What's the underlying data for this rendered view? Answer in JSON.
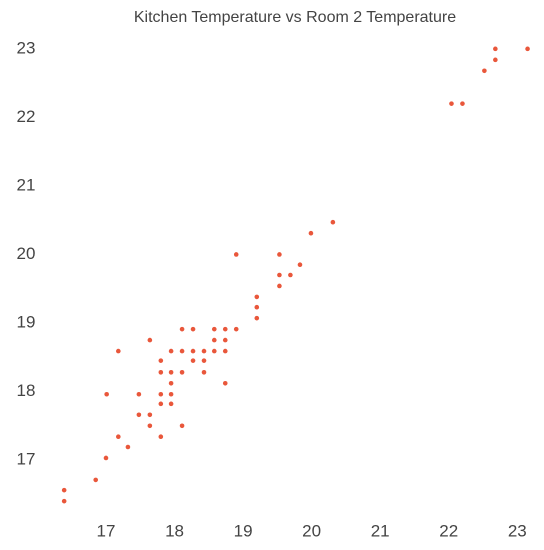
{
  "chart_data": {
    "type": "scatter",
    "title": "Kitchen Temperature vs Room 2 Temperature",
    "color": "#e9573b",
    "xlim": [
      16.3,
      23.2
    ],
    "ylim": [
      16.3,
      23.1
    ],
    "xticks": [
      17,
      18,
      19,
      20,
      21,
      22,
      23
    ],
    "yticks": [
      17,
      18,
      19,
      20,
      21,
      22,
      23
    ],
    "x": [
      16.39,
      16.39,
      16.85,
      17.0,
      17.01,
      17.18,
      17.18,
      17.32,
      17.48,
      17.48,
      17.64,
      17.64,
      17.64,
      17.8,
      17.8,
      17.8,
      17.8,
      17.8,
      17.95,
      17.95,
      17.95,
      17.95,
      17.95,
      18.11,
      18.11,
      18.11,
      18.11,
      18.27,
      18.27,
      18.27,
      18.43,
      18.43,
      18.43,
      18.58,
      18.58,
      18.58,
      18.74,
      18.74,
      18.74,
      18.74,
      18.9,
      18.9,
      19.2,
      19.2,
      19.2,
      19.53,
      19.53,
      19.53,
      19.69,
      19.83,
      19.99,
      20.31,
      22.04,
      22.2,
      22.52,
      22.68,
      22.68,
      23.15
    ],
    "values": [
      16.56,
      16.4,
      16.71,
      17.03,
      17.96,
      17.34,
      18.59,
      17.19,
      17.96,
      17.66,
      17.66,
      17.5,
      18.75,
      17.34,
      17.82,
      17.96,
      18.28,
      18.45,
      17.82,
      17.96,
      18.12,
      18.28,
      18.59,
      17.5,
      18.28,
      18.59,
      18.91,
      18.45,
      18.59,
      18.91,
      18.28,
      18.45,
      18.59,
      18.59,
      18.75,
      18.91,
      18.12,
      18.59,
      18.75,
      18.91,
      18.91,
      20.0,
      19.07,
      19.23,
      19.38,
      19.54,
      19.7,
      20.0,
      19.7,
      19.85,
      20.31,
      20.47,
      22.2,
      22.2,
      22.68,
      22.84,
      23.0,
      23.0
    ]
  }
}
